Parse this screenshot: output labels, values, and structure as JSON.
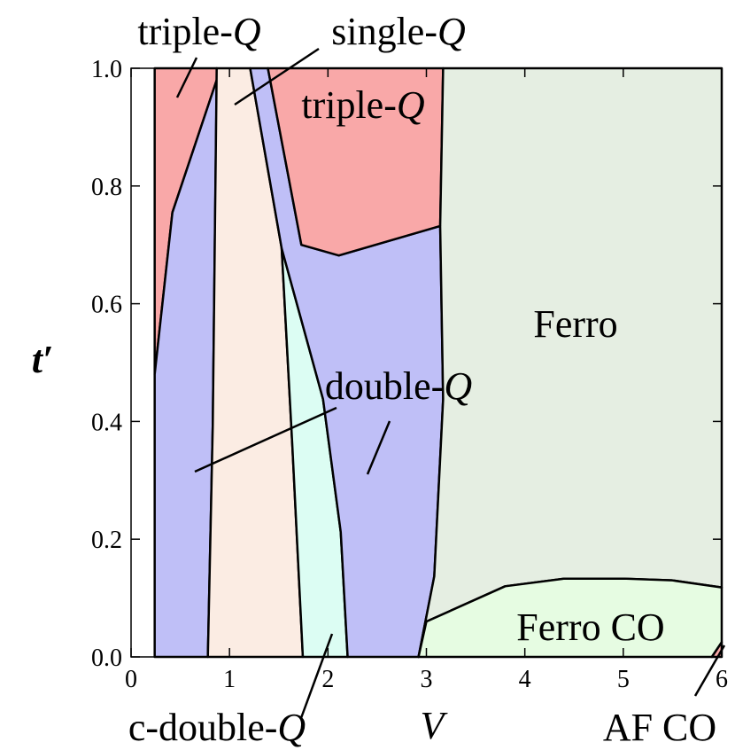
{
  "chart_data": {
    "type": "phase",
    "x_label": "V",
    "y_label": "t′",
    "xlim": [
      0,
      6
    ],
    "ylim": [
      0,
      1
    ],
    "xticks": [
      0,
      1,
      2,
      3,
      4,
      5,
      6
    ],
    "yticks": [
      {
        "value": 0,
        "label": "0.0"
      },
      {
        "value": 0.2,
        "label": "0.2"
      },
      {
        "value": 0.4,
        "label": "0.4"
      },
      {
        "value": 0.6,
        "label": "0.6"
      },
      {
        "value": 0.8,
        "label": "0.8"
      },
      {
        "value": 1,
        "label": "1.0"
      }
    ],
    "regions": [
      {
        "name": "triple-Q",
        "color": "#f9a8a8",
        "x": [
          0.24,
          0.87,
          0.87,
          0.42,
          0.24
        ],
        "y": [
          1,
          1,
          0.98,
          0.755,
          0.48
        ]
      },
      {
        "name": "double-Q",
        "color": "#bfbff7",
        "x": [
          0.24,
          0.78,
          0.83,
          0.87,
          0.42,
          0.24
        ],
        "y": [
          0,
          0,
          0.393,
          0.98,
          0.755,
          0.48
        ]
      },
      {
        "name": "single-Q",
        "color": "#fbece3",
        "x": [
          0.78,
          0.83,
          0.87,
          1.21,
          1.53,
          1.637,
          1.745
        ],
        "y": [
          0,
          0.393,
          1,
          1,
          0.694,
          0.363,
          0
        ]
      },
      {
        "name": "c-double-Q",
        "color": "#dcfdf3",
        "x": [
          1.745,
          2.2,
          2.13,
          1.95,
          1.53,
          1.637
        ],
        "y": [
          0,
          0,
          0.212,
          0.438,
          0.694,
          0.363
        ]
      },
      {
        "name": "double-Q",
        "color": "#bfbff7",
        "x": [
          1.39,
          1.73,
          2.11,
          3.14,
          3.17,
          3.08,
          2.92,
          2.2,
          2.13,
          1.95,
          1.53,
          1.21
        ],
        "y": [
          1,
          0.7,
          0.682,
          0.732,
          0.438,
          0.137,
          0,
          0,
          0.212,
          0.438,
          0.694,
          1
        ]
      },
      {
        "name": "triple-Q",
        "color": "#f9a8a8",
        "x": [
          1.39,
          3.17,
          3.14,
          2.11,
          1.73
        ],
        "y": [
          1,
          1,
          0.732,
          0.682,
          0.7
        ]
      },
      {
        "name": "Ferro",
        "color": "#e5eee2",
        "x": [
          3.17,
          6,
          6,
          5.5,
          5,
          4.4,
          3.8,
          3,
          2.92,
          3.08,
          3.17,
          3.14
        ],
        "y": [
          1,
          1,
          0.118,
          0.13,
          0.133,
          0.133,
          0.12,
          0.06,
          0,
          0.137,
          0.438,
          0.732
        ]
      },
      {
        "name": "Ferro CO",
        "color": "#e6fce2",
        "x": [
          2.92,
          3,
          3.8,
          4.4,
          5,
          5.5,
          6,
          6,
          5.9
        ],
        "y": [
          0,
          0.06,
          0.12,
          0.133,
          0.133,
          0.13,
          0.118,
          0.025,
          0
        ]
      },
      {
        "name": "AF CO",
        "color": "#f9a8a8",
        "x": [
          5.9,
          6,
          6
        ],
        "y": [
          0,
          0.025,
          0
        ]
      }
    ],
    "labels": [
      {
        "text": "triple-",
        "math": "Q"
      },
      {
        "text": "single-",
        "math": "Q"
      },
      {
        "text": "triple-",
        "math": "Q"
      },
      {
        "text": "Ferro"
      },
      {
        "text": "double-",
        "math": "Q"
      },
      {
        "text": "Ferro CO"
      },
      {
        "text": "c-double-",
        "math": "Q"
      },
      {
        "text": "AF CO"
      }
    ]
  }
}
